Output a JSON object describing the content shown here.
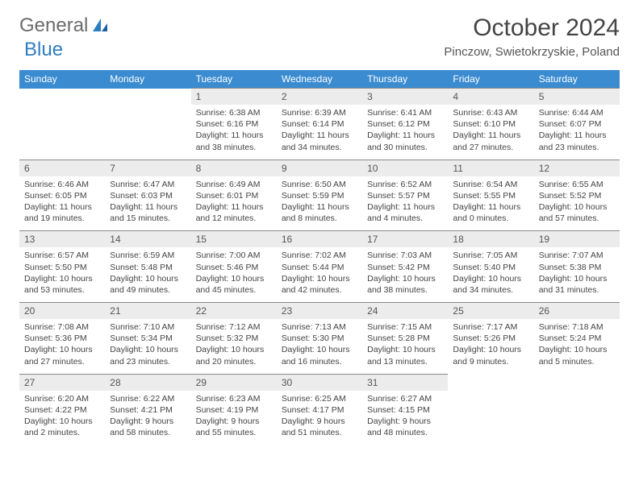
{
  "brand": {
    "part1": "General",
    "part2": "Blue"
  },
  "title": "October 2024",
  "location": "Pinczow, Swietokrzyskie, Poland",
  "colors": {
    "header_bg": "#3a8bd0",
    "header_text": "#ffffff",
    "daynum_bg": "#ececec",
    "text": "#444444",
    "rule": "#888888",
    "logo_gray": "#6b6b6b",
    "logo_blue": "#2f7dc1"
  },
  "weekdays": [
    "Sunday",
    "Monday",
    "Tuesday",
    "Wednesday",
    "Thursday",
    "Friday",
    "Saturday"
  ],
  "month": {
    "year": 2024,
    "month": 10,
    "days_in_month": 31,
    "first_weekday_index": 2
  },
  "days": [
    {
      "n": 1,
      "sunrise": "6:38 AM",
      "sunset": "6:16 PM",
      "daylight": "11 hours and 38 minutes."
    },
    {
      "n": 2,
      "sunrise": "6:39 AM",
      "sunset": "6:14 PM",
      "daylight": "11 hours and 34 minutes."
    },
    {
      "n": 3,
      "sunrise": "6:41 AM",
      "sunset": "6:12 PM",
      "daylight": "11 hours and 30 minutes."
    },
    {
      "n": 4,
      "sunrise": "6:43 AM",
      "sunset": "6:10 PM",
      "daylight": "11 hours and 27 minutes."
    },
    {
      "n": 5,
      "sunrise": "6:44 AM",
      "sunset": "6:07 PM",
      "daylight": "11 hours and 23 minutes."
    },
    {
      "n": 6,
      "sunrise": "6:46 AM",
      "sunset": "6:05 PM",
      "daylight": "11 hours and 19 minutes."
    },
    {
      "n": 7,
      "sunrise": "6:47 AM",
      "sunset": "6:03 PM",
      "daylight": "11 hours and 15 minutes."
    },
    {
      "n": 8,
      "sunrise": "6:49 AM",
      "sunset": "6:01 PM",
      "daylight": "11 hours and 12 minutes."
    },
    {
      "n": 9,
      "sunrise": "6:50 AM",
      "sunset": "5:59 PM",
      "daylight": "11 hours and 8 minutes."
    },
    {
      "n": 10,
      "sunrise": "6:52 AM",
      "sunset": "5:57 PM",
      "daylight": "11 hours and 4 minutes."
    },
    {
      "n": 11,
      "sunrise": "6:54 AM",
      "sunset": "5:55 PM",
      "daylight": "11 hours and 0 minutes."
    },
    {
      "n": 12,
      "sunrise": "6:55 AM",
      "sunset": "5:52 PM",
      "daylight": "10 hours and 57 minutes."
    },
    {
      "n": 13,
      "sunrise": "6:57 AM",
      "sunset": "5:50 PM",
      "daylight": "10 hours and 53 minutes."
    },
    {
      "n": 14,
      "sunrise": "6:59 AM",
      "sunset": "5:48 PM",
      "daylight": "10 hours and 49 minutes."
    },
    {
      "n": 15,
      "sunrise": "7:00 AM",
      "sunset": "5:46 PM",
      "daylight": "10 hours and 45 minutes."
    },
    {
      "n": 16,
      "sunrise": "7:02 AM",
      "sunset": "5:44 PM",
      "daylight": "10 hours and 42 minutes."
    },
    {
      "n": 17,
      "sunrise": "7:03 AM",
      "sunset": "5:42 PM",
      "daylight": "10 hours and 38 minutes."
    },
    {
      "n": 18,
      "sunrise": "7:05 AM",
      "sunset": "5:40 PM",
      "daylight": "10 hours and 34 minutes."
    },
    {
      "n": 19,
      "sunrise": "7:07 AM",
      "sunset": "5:38 PM",
      "daylight": "10 hours and 31 minutes."
    },
    {
      "n": 20,
      "sunrise": "7:08 AM",
      "sunset": "5:36 PM",
      "daylight": "10 hours and 27 minutes."
    },
    {
      "n": 21,
      "sunrise": "7:10 AM",
      "sunset": "5:34 PM",
      "daylight": "10 hours and 23 minutes."
    },
    {
      "n": 22,
      "sunrise": "7:12 AM",
      "sunset": "5:32 PM",
      "daylight": "10 hours and 20 minutes."
    },
    {
      "n": 23,
      "sunrise": "7:13 AM",
      "sunset": "5:30 PM",
      "daylight": "10 hours and 16 minutes."
    },
    {
      "n": 24,
      "sunrise": "7:15 AM",
      "sunset": "5:28 PM",
      "daylight": "10 hours and 13 minutes."
    },
    {
      "n": 25,
      "sunrise": "7:17 AM",
      "sunset": "5:26 PM",
      "daylight": "10 hours and 9 minutes."
    },
    {
      "n": 26,
      "sunrise": "7:18 AM",
      "sunset": "5:24 PM",
      "daylight": "10 hours and 5 minutes."
    },
    {
      "n": 27,
      "sunrise": "6:20 AM",
      "sunset": "4:22 PM",
      "daylight": "10 hours and 2 minutes."
    },
    {
      "n": 28,
      "sunrise": "6:22 AM",
      "sunset": "4:21 PM",
      "daylight": "9 hours and 58 minutes."
    },
    {
      "n": 29,
      "sunrise": "6:23 AM",
      "sunset": "4:19 PM",
      "daylight": "9 hours and 55 minutes."
    },
    {
      "n": 30,
      "sunrise": "6:25 AM",
      "sunset": "4:17 PM",
      "daylight": "9 hours and 51 minutes."
    },
    {
      "n": 31,
      "sunrise": "6:27 AM",
      "sunset": "4:15 PM",
      "daylight": "9 hours and 48 minutes."
    }
  ],
  "labels": {
    "sunrise": "Sunrise:",
    "sunset": "Sunset:",
    "daylight": "Daylight:"
  }
}
